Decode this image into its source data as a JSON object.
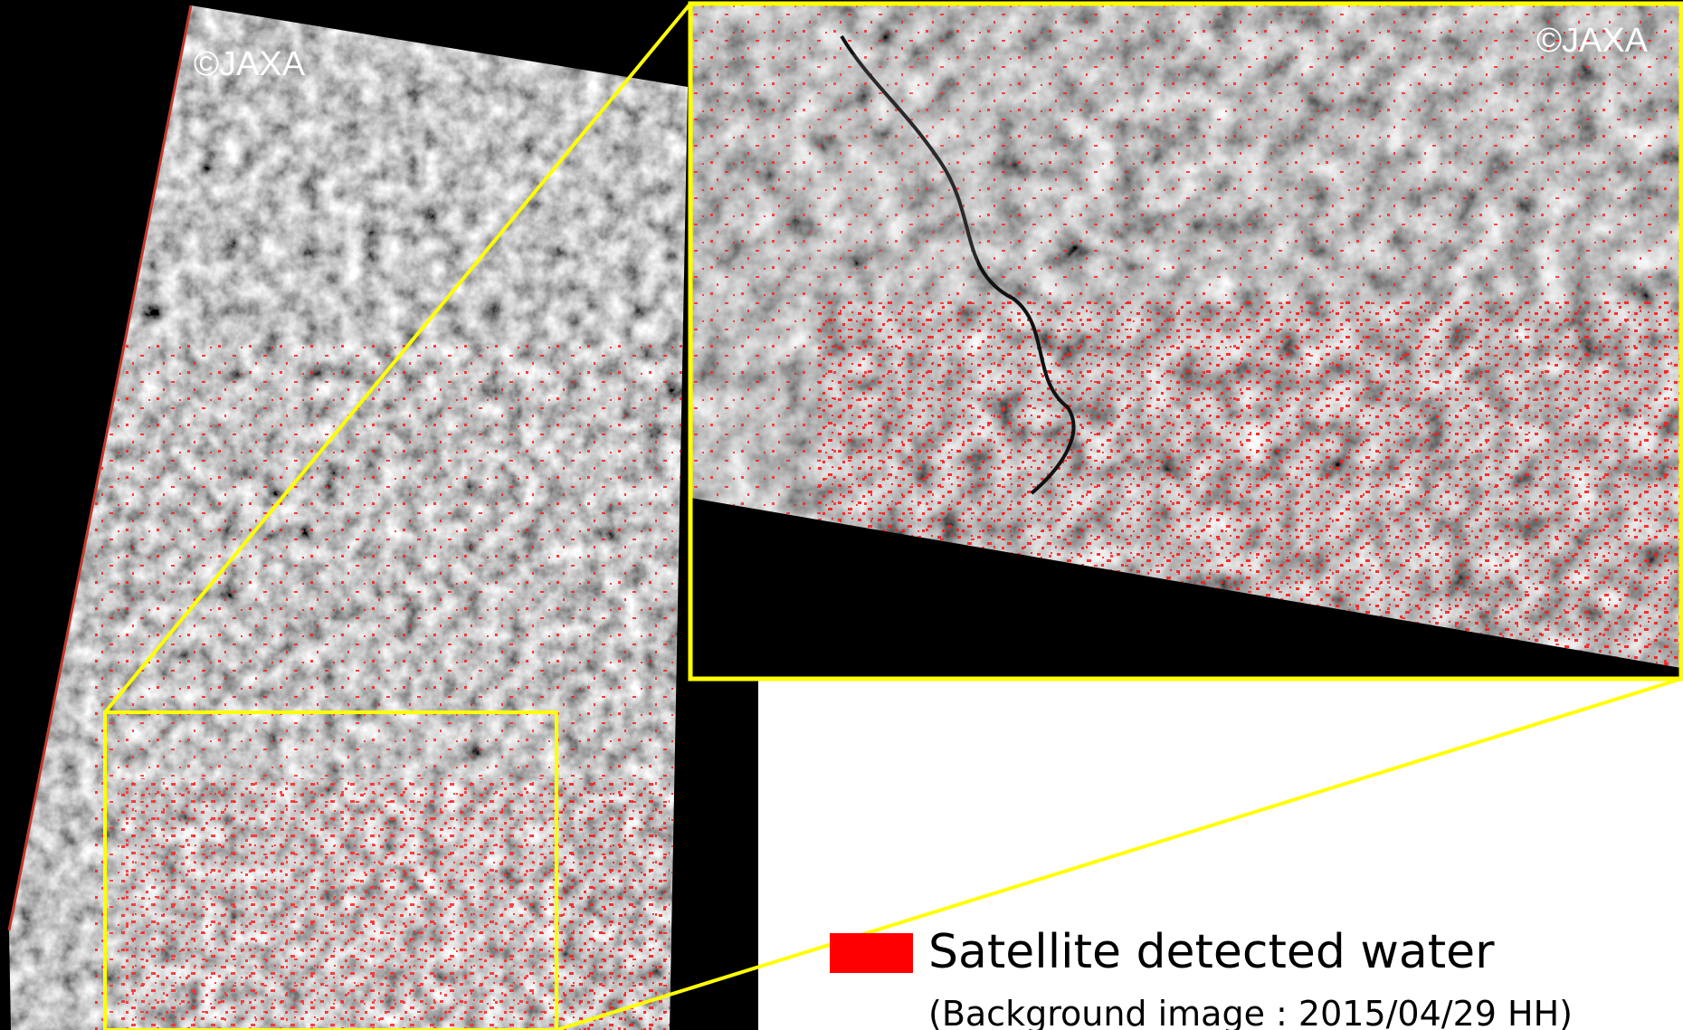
{
  "main_image": {
    "copyright": "©JAXA"
  },
  "inset_image": {
    "copyright": "©JAXA"
  },
  "legend": {
    "swatch_color": "#ff0000",
    "label": "Satellite detected water",
    "background_note": "(Background image : 2015/04/29 HH)"
  },
  "colors": {
    "highlight": "#ffff00",
    "water": "#ff0000",
    "background": "#000000"
  }
}
